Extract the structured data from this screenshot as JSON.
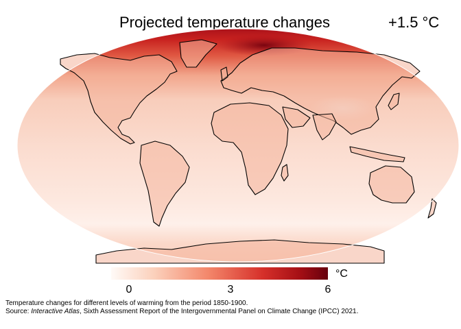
{
  "title": "Projected temperature changes",
  "warming_level": "+1.5 °C",
  "colorbar": {
    "unit": "°C",
    "ticks": [
      "0",
      "3",
      "6"
    ],
    "range": [
      0,
      6
    ],
    "colors": [
      "#fffaf7",
      "#fbd0bb",
      "#f3866a",
      "#d6302a",
      "#a50f15",
      "#67000d"
    ]
  },
  "caption": {
    "line1": "Temperature changes for different levels of warming from the period 1850-1900.",
    "line2_prefix": "Source: ",
    "line2_italic": "Interactive Atlas",
    "line2_rest": ", Sixth Assessment Report of the Intergovernmental Panel on Climate Change (IPCC) 2021."
  },
  "palette": {
    "ocean_base": "#fbe3d9",
    "land_base": "#f7c3ae",
    "arctic_hot": "#d9342a",
    "arctic_hottest": "#b2121b",
    "outline": "#000000"
  }
}
